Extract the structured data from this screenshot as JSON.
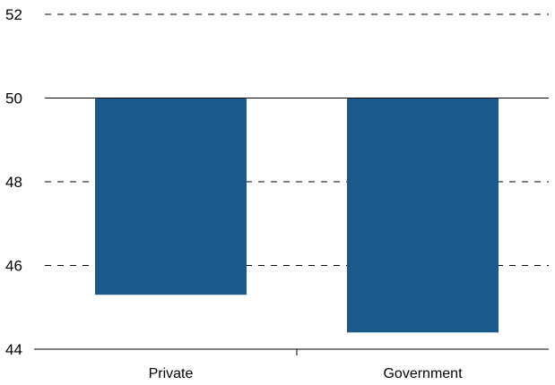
{
  "chart_data": {
    "type": "bar",
    "categories": [
      "Private",
      "Government"
    ],
    "values": [
      45.3,
      44.4
    ],
    "baseline": 50,
    "ylim": [
      44,
      52
    ],
    "yticks": [
      44,
      46,
      48,
      50,
      52
    ],
    "ytick_labels": [
      "44",
      "46",
      "48",
      "50",
      "52"
    ],
    "grid": true,
    "bar_color": "#1a5a8a",
    "title": "",
    "xlabel": "",
    "ylabel": ""
  }
}
